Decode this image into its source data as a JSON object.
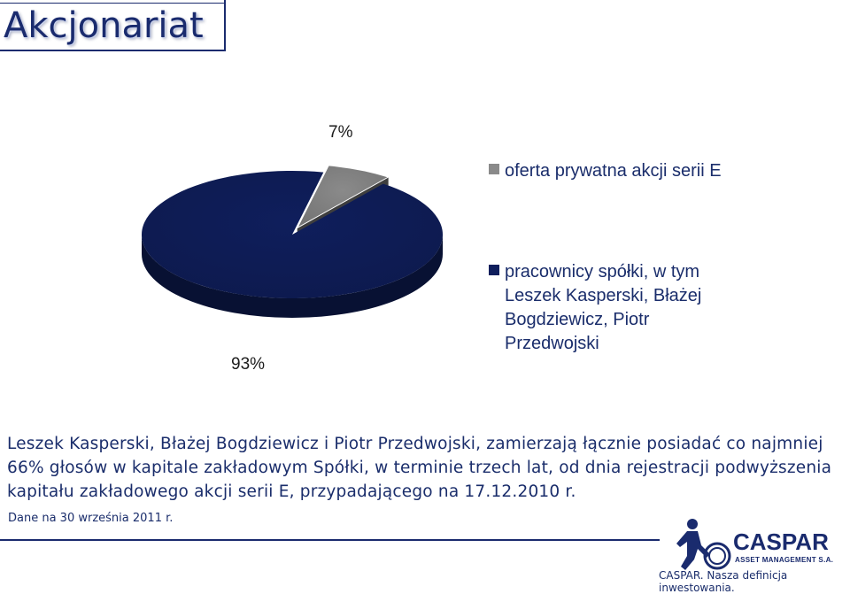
{
  "title": "Akcjonariat",
  "chart_data": {
    "type": "pie",
    "categories": [
      "oferta prywatna akcji serii E",
      "pracownicy spółki, w tym Leszek Kasperski, Błażej Bogdziewicz, Piotr Przedwojski"
    ],
    "values": [
      7,
      93
    ],
    "data_labels": [
      "7%",
      "93%"
    ],
    "colors": [
      "#8a8a8a",
      "#0f1e5c"
    ],
    "legend_placement": "right"
  },
  "legend": [
    {
      "label": "oferta prywatna akcji serii E",
      "color": "#8a8a8a"
    },
    {
      "label_lines": [
        "pracownicy spółki, w tym",
        "Leszek Kasperski, Błażej",
        "Bogdziewicz, Piotr",
        "Przedwojski"
      ],
      "color": "#0f1e5c"
    }
  ],
  "note_lines": [
    "Leszek Kasperski, Błażej Bogdziewicz i Piotr Przedwojski, zamierzają łącznie posiadać co najmniej",
    "66% głosów w kapitale zakładowym Spółki, w terminie trzech lat, od dnia rejestracji podwyższenia",
    "kapitału zakładowego akcji serii E,  przypadającego na 17.12.2010 r."
  ],
  "date_note": "Dane na 30 września 2011 r.",
  "logo": {
    "name": "CASPAR",
    "sub": "ASSET MANAGEMENT S.A."
  },
  "slogan": "CASPAR. Nasza definicja inwestowania."
}
